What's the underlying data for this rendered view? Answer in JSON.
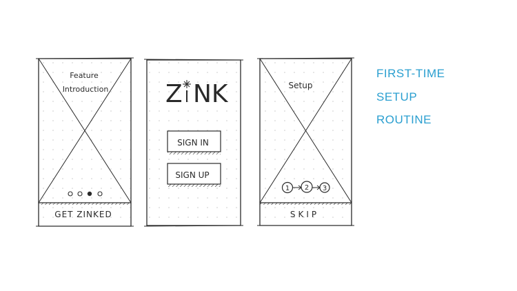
{
  "screens": {
    "feature_intro": {
      "title_line1": "Feature",
      "title_line2": "Introduction",
      "cta_label": "GET ZINKED"
    },
    "login": {
      "logo_text_left": "Z",
      "logo_text_right": "NK",
      "sign_in_label": "SIGN IN",
      "sign_up_label": "SIGN UP"
    },
    "setup": {
      "title": "Setup",
      "steps": [
        "1",
        "2",
        "3"
      ],
      "skip_label": "SKIP"
    }
  },
  "heading": {
    "line1": "FIRST-TIME",
    "line2": "SETUP",
    "line3": "ROUTINE"
  },
  "colors": {
    "heading": "#2a9fd0",
    "ink": "#2a2a2a",
    "grid_dot": "#c8c8c8"
  }
}
